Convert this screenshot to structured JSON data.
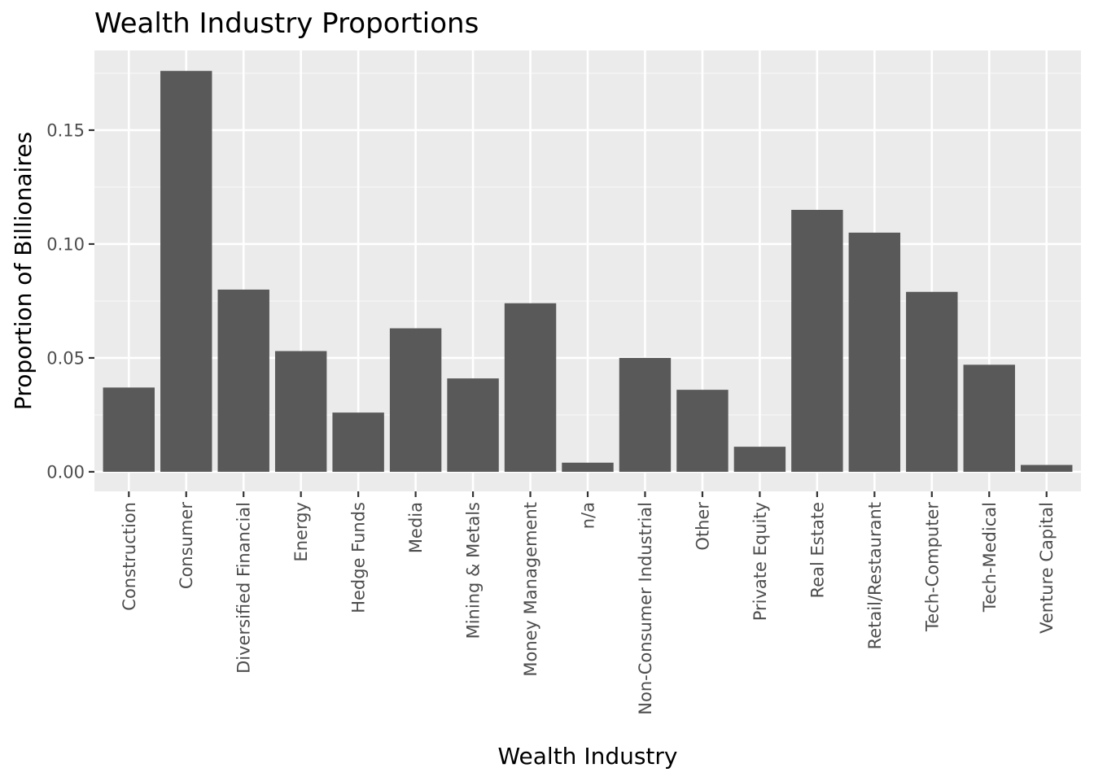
{
  "chart_data": {
    "type": "bar",
    "title": "Wealth Industry Proportions",
    "xlabel": "Wealth Industry",
    "ylabel": "Proportion of Billionaires",
    "categories": [
      "Construction",
      "Consumer",
      "Diversified Financial",
      "Energy",
      "Hedge Funds",
      "Media",
      "Mining & Metals",
      "Money Management",
      "n/a",
      "Non-Consumer Industrial",
      "Other",
      "Private Equity",
      "Real Estate",
      "Retail/Restaurant",
      "Tech-Computer",
      "Tech-Medical",
      "Venture Capital"
    ],
    "values": [
      0.037,
      0.176,
      0.08,
      0.053,
      0.026,
      0.063,
      0.041,
      0.074,
      0.004,
      0.05,
      0.036,
      0.011,
      0.115,
      0.105,
      0.079,
      0.047,
      0.003
    ],
    "ylim": [
      -0.0086,
      0.185
    ],
    "y_ticks": [
      0.0,
      0.05,
      0.1,
      0.15
    ],
    "y_tick_labels": [
      "0.00",
      "0.05",
      "0.10",
      "0.15"
    ],
    "grid": true,
    "legend": "none",
    "colors": {
      "bar": "#595959",
      "panel": "#ebebeb",
      "grid_major": "#ffffff",
      "grid_minor": "#f5f5f5",
      "text": "#000000",
      "tick_text": "#4d4d4d",
      "tick_mark": "#333333"
    }
  }
}
